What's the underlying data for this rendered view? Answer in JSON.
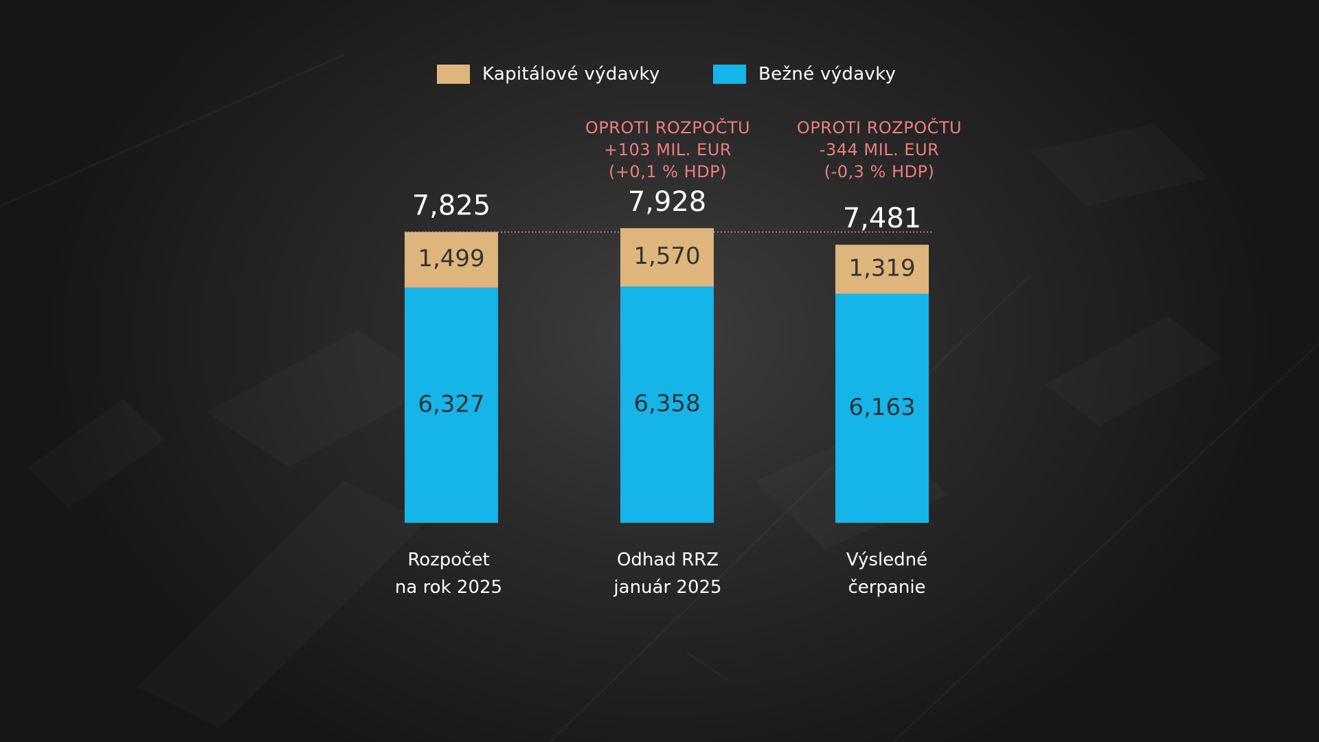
{
  "legend": {
    "capital_label": "Kapitálové výdavky",
    "current_label": "Bežné výdavky"
  },
  "colors": {
    "capital": "#deb57c",
    "current": "#15b5ea",
    "note": "#ef7d7d",
    "reference_line": "#c88a8a"
  },
  "annotations": [
    {
      "line1": "",
      "line2": "",
      "line3": ""
    },
    {
      "line1": "OPROTI ROZPOČTU",
      "line2": "+103 MIL. EUR",
      "line3": "(+0,1 % HDP)"
    },
    {
      "line1": "OPROTI ROZPOČTU",
      "line2": "-344 MIL. EUR",
      "line3": "(-0,3 % HDP)"
    }
  ],
  "chart_data": {
    "type": "bar",
    "stacked": true,
    "categories": [
      [
        "Rozpočet",
        "na rok 2025"
      ],
      [
        "Odhad RRZ",
        "január 2025"
      ],
      [
        "Výsledné",
        "čerpanie"
      ]
    ],
    "series": [
      {
        "name": "Bežné výdavky",
        "values": [
          6327,
          6358,
          6163
        ],
        "labels": [
          "6,327",
          "6,358",
          "6,163"
        ]
      },
      {
        "name": "Kapitálové výdavky",
        "values": [
          1499,
          1570,
          1319
        ],
        "labels": [
          "1,499",
          "1,570",
          "1,319"
        ]
      }
    ],
    "totals": [
      7825,
      7928,
      7481
    ],
    "total_labels": [
      "7,825",
      "7,928",
      "7,481"
    ],
    "reference_line_value": 7825,
    "legend_position": "top",
    "grid": false
  }
}
